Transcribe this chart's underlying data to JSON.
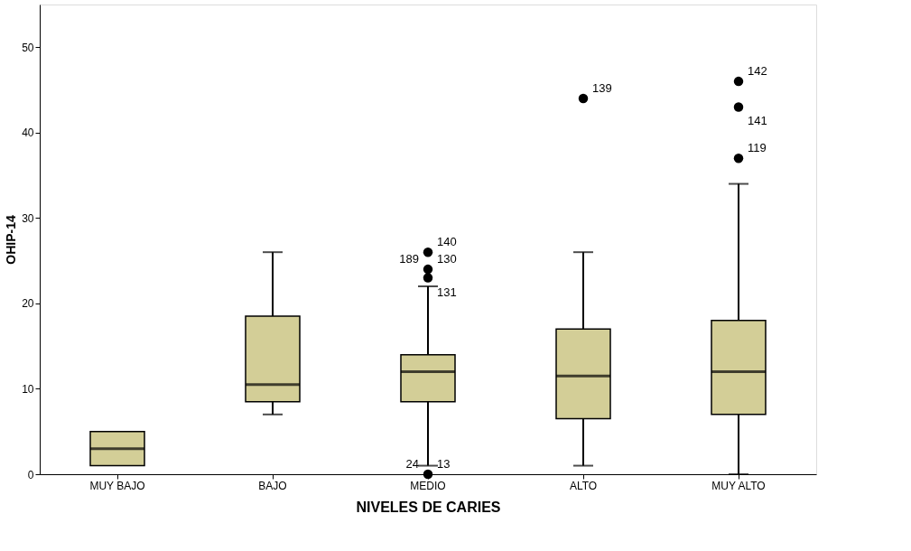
{
  "chart_data": {
    "type": "box",
    "xlabel": "NIVELES DE CARIES",
    "ylabel": "OHIP-14",
    "categories": [
      "MUY BAJO",
      "BAJO",
      "MEDIO",
      "ALTO",
      "MUY ALTO"
    ],
    "series": [
      {
        "color": "#d3ce97",
        "boxes": [
          {
            "low": 1,
            "q1": 1,
            "median": 3,
            "q3": 5,
            "high": 5
          },
          {
            "low": 7,
            "q1": 8.5,
            "median": 10.5,
            "q3": 18.5,
            "high": 26
          },
          {
            "low": 1,
            "q1": 8.5,
            "median": 12,
            "q3": 14,
            "high": 22
          },
          {
            "low": 1,
            "q1": 6.5,
            "median": 11.5,
            "q3": 17,
            "high": 26
          },
          {
            "low": 0,
            "q1": 7,
            "median": 12,
            "q3": 18,
            "high": 34
          }
        ]
      },
      {
        "type": "scatter",
        "color": "#000000",
        "x": [
          "MEDIO",
          "MEDIO",
          "MEDIO",
          "MEDIO",
          "ALTO",
          "MUY ALTO",
          "MUY ALTO",
          "MUY ALTO"
        ],
        "values": [
          26,
          24,
          23,
          0,
          44,
          46,
          43,
          37
        ]
      }
    ],
    "annotations": [
      {
        "text": "140",
        "x": "MEDIO",
        "y": 26
      },
      {
        "text": "189",
        "x": "MEDIO",
        "y": 24
      },
      {
        "text": "130",
        "x": "MEDIO",
        "y": 24
      },
      {
        "text": "131",
        "x": "MEDIO",
        "y": 23
      },
      {
        "text": "24",
        "x": "MEDIO",
        "y": 0
      },
      {
        "text": "13",
        "x": "MEDIO",
        "y": 0
      },
      {
        "text": "139",
        "x": "ALTO",
        "y": 44
      },
      {
        "text": "142",
        "x": "MUY ALTO",
        "y": 46
      },
      {
        "text": "141",
        "x": "MUY ALTO",
        "y": 43
      },
      {
        "text": "119",
        "x": "MUY ALTO",
        "y": 37
      }
    ],
    "ylim": [
      0,
      55
    ],
    "yticks": [
      0,
      10,
      20,
      30,
      40,
      50
    ],
    "grid": false,
    "marker": "circle"
  }
}
